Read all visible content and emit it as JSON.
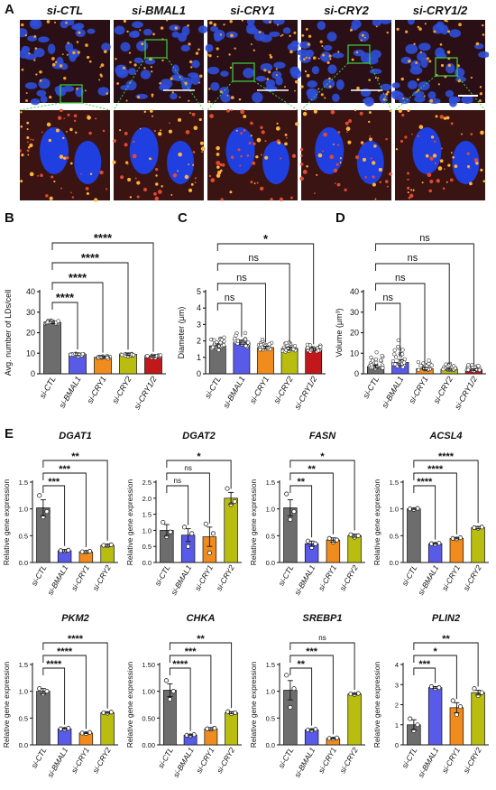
{
  "panel_labels": [
    "A",
    "B",
    "C",
    "D",
    "E"
  ],
  "micrograph": {
    "column_titles": [
      "si-CTL",
      "si-BMAL1",
      "si-CRY1",
      "si-CRY2",
      "si-CRY1/2"
    ]
  },
  "colors": {
    "si-CTL": "#6d6d6d",
    "si-BMAL1": "#5a5ae8",
    "si-CRY1": "#f08c1e",
    "si-CRY2": "#b9bd10",
    "si-CRY1/2": "#c0181b"
  },
  "chart_data": [
    {
      "id": "B",
      "type": "bar",
      "categories": [
        "si-CTL",
        "si-BMAL1",
        "si-CRY1",
        "si-CRY2",
        "si-CRY1/2"
      ],
      "values": [
        25,
        9.5,
        8,
        9.5,
        8.5
      ],
      "errors": [
        0.6,
        0.6,
        0.5,
        0.5,
        0.4
      ],
      "ylim": [
        0,
        40
      ],
      "yticks": [
        0,
        10,
        20,
        30,
        40
      ],
      "ylabel": "Avg. number of LDs/cell",
      "significance": [
        {
          "from": 0,
          "to": 1,
          "label": "****"
        },
        {
          "from": 0,
          "to": 2,
          "label": "****"
        },
        {
          "from": 0,
          "to": 3,
          "label": "****"
        },
        {
          "from": 0,
          "to": 4,
          "label": "****"
        }
      ]
    },
    {
      "id": "C",
      "type": "bar",
      "categories": [
        "si-CTL",
        "si-BMAL1",
        "si-CRY1",
        "si-CRY2",
        "si-CRY1/2"
      ],
      "values": [
        1.7,
        1.9,
        1.6,
        1.55,
        1.5
      ],
      "errors": [
        0.12,
        0.13,
        0.08,
        0.08,
        0.07
      ],
      "ylim": [
        0,
        5
      ],
      "yticks": [
        0,
        1,
        2,
        3,
        4,
        5
      ],
      "ylabel": "Diameter (μm)",
      "significance": [
        {
          "from": 0,
          "to": 1,
          "label": "ns"
        },
        {
          "from": 0,
          "to": 2,
          "label": "ns"
        },
        {
          "from": 0,
          "to": 3,
          "label": "ns"
        },
        {
          "from": 0,
          "to": 4,
          "label": "*"
        }
      ]
    },
    {
      "id": "D",
      "type": "bar",
      "categories": [
        "si-CTL",
        "si-BMAL1",
        "si-CRY1",
        "si-CRY2",
        "si-CRY1/2"
      ],
      "values": [
        3.5,
        5.5,
        2.5,
        2.2,
        2.0
      ],
      "errors": [
        0.8,
        1.5,
        0.5,
        0.4,
        0.4
      ],
      "ylim": [
        0,
        40
      ],
      "yticks": [
        0,
        10,
        20,
        30,
        40
      ],
      "ylabel": "Volume (μm³)",
      "significance": [
        {
          "from": 0,
          "to": 1,
          "label": "ns"
        },
        {
          "from": 0,
          "to": 2,
          "label": "ns"
        },
        {
          "from": 0,
          "to": 3,
          "label": "ns"
        },
        {
          "from": 0,
          "to": 4,
          "label": "ns"
        }
      ]
    },
    {
      "id": "DGAT1",
      "type": "bar",
      "title": "DGAT1",
      "categories": [
        "si-CTL",
        "si-BMAL1",
        "si-CRY1",
        "si-CRY2"
      ],
      "values": [
        1.02,
        0.22,
        0.2,
        0.32
      ],
      "errors": [
        0.15,
        0.02,
        0.02,
        0.02
      ],
      "points": [
        [
          1.25,
          0.85,
          0.95
        ],
        [
          0.22,
          0.21,
          0.23
        ],
        [
          0.2,
          0.19,
          0.21
        ],
        [
          0.32,
          0.31,
          0.33
        ]
      ],
      "ylim": [
        0,
        1.5
      ],
      "yticks": [
        0.0,
        0.5,
        1.0,
        1.5
      ],
      "ylabel": "Relative gene expression",
      "significance": [
        {
          "from": 0,
          "to": 1,
          "label": "***"
        },
        {
          "from": 0,
          "to": 2,
          "label": "***"
        },
        {
          "from": 0,
          "to": 3,
          "label": "**"
        }
      ]
    },
    {
      "id": "DGAT2",
      "type": "bar",
      "title": "DGAT2",
      "categories": [
        "si-CTL",
        "si-BMAL1",
        "si-CRY1",
        "si-CRY2"
      ],
      "values": [
        1.0,
        0.85,
        0.8,
        2.0
      ],
      "errors": [
        0.18,
        0.2,
        0.3,
        0.18
      ],
      "points": [
        [
          1.25,
          0.8,
          0.95
        ],
        [
          1.1,
          0.5,
          0.9
        ],
        [
          1.2,
          0.3,
          0.9
        ],
        [
          2.3,
          1.8,
          1.9
        ]
      ],
      "ylim": [
        0,
        2.5
      ],
      "yticks": [
        0.0,
        0.5,
        1.0,
        1.5,
        2.0,
        2.5
      ],
      "ylabel": "Relative gene expression",
      "significance": [
        {
          "from": 0,
          "to": 1,
          "label": "ns"
        },
        {
          "from": 0,
          "to": 2,
          "label": "ns"
        },
        {
          "from": 0,
          "to": 3,
          "label": "*"
        }
      ]
    },
    {
      "id": "FASN",
      "type": "bar",
      "title": "FASN",
      "categories": [
        "si-CTL",
        "si-BMAL1",
        "si-CRY1",
        "si-CRY2"
      ],
      "values": [
        1.02,
        0.35,
        0.42,
        0.5
      ],
      "errors": [
        0.15,
        0.05,
        0.04,
        0.03
      ],
      "points": [
        [
          1.28,
          0.8,
          0.95
        ],
        [
          0.4,
          0.28,
          0.35
        ],
        [
          0.45,
          0.38,
          0.42
        ],
        [
          0.52,
          0.47,
          0.5
        ]
      ],
      "ylim": [
        0,
        1.5
      ],
      "yticks": [
        0.0,
        0.5,
        1.0,
        1.5
      ],
      "ylabel": "Relative gene expression",
      "significance": [
        {
          "from": 0,
          "to": 1,
          "label": "**"
        },
        {
          "from": 0,
          "to": 2,
          "label": "**"
        },
        {
          "from": 0,
          "to": 3,
          "label": "*"
        }
      ]
    },
    {
      "id": "ACSL4",
      "type": "bar",
      "title": "ACSL4",
      "categories": [
        "si-CTL",
        "si-BMAL1",
        "si-CRY1",
        "si-CRY2"
      ],
      "values": [
        1.0,
        0.35,
        0.45,
        0.65
      ],
      "errors": [
        0.01,
        0.01,
        0.01,
        0.02
      ],
      "points": [
        [
          1.0,
          0.99,
          1.01
        ],
        [
          0.35,
          0.34,
          0.36
        ],
        [
          0.45,
          0.44,
          0.46
        ],
        [
          0.65,
          0.64,
          0.66
        ]
      ],
      "ylim": [
        0,
        1.5
      ],
      "yticks": [
        0.0,
        0.5,
        1.0,
        1.5
      ],
      "ylabel": "Relative gene expression",
      "significance": [
        {
          "from": 0,
          "to": 1,
          "label": "****"
        },
        {
          "from": 0,
          "to": 2,
          "label": "****"
        },
        {
          "from": 0,
          "to": 3,
          "label": "****"
        }
      ]
    },
    {
      "id": "PKM2",
      "type": "bar",
      "title": "PKM2",
      "categories": [
        "si-CTL",
        "si-BMAL1",
        "si-CRY1",
        "si-CRY2"
      ],
      "values": [
        1.0,
        0.3,
        0.22,
        0.6
      ],
      "errors": [
        0.05,
        0.01,
        0.01,
        0.01
      ],
      "points": [
        [
          1.05,
          0.95,
          1.0
        ],
        [
          0.3,
          0.29,
          0.31
        ],
        [
          0.22,
          0.21,
          0.23
        ],
        [
          0.6,
          0.59,
          0.61
        ]
      ],
      "ylim": [
        0,
        1.5
      ],
      "yticks": [
        0.0,
        0.5,
        1.0,
        1.5
      ],
      "ylabel": "Relative gene expression",
      "significance": [
        {
          "from": 0,
          "to": 1,
          "label": "****"
        },
        {
          "from": 0,
          "to": 2,
          "label": "****"
        },
        {
          "from": 0,
          "to": 3,
          "label": "****"
        }
      ]
    },
    {
      "id": "CHKA",
      "type": "bar",
      "title": "CHKA",
      "categories": [
        "si-CTL",
        "si-BMAL1",
        "si-CRY1",
        "si-CRY2"
      ],
      "values": [
        1.02,
        0.18,
        0.3,
        0.6
      ],
      "errors": [
        0.12,
        0.01,
        0.02,
        0.02
      ],
      "points": [
        [
          1.2,
          0.85,
          1.0
        ],
        [
          0.18,
          0.17,
          0.19
        ],
        [
          0.3,
          0.29,
          0.31
        ],
        [
          0.62,
          0.58,
          0.6
        ]
      ],
      "ylim": [
        0,
        1.5
      ],
      "yticks": [
        0.0,
        0.5,
        1.0,
        1.5
      ],
      "ylabel": "Relative gene expression",
      "significance": [
        {
          "from": 0,
          "to": 1,
          "label": "****"
        },
        {
          "from": 0,
          "to": 2,
          "label": "***"
        },
        {
          "from": 0,
          "to": 3,
          "label": "**"
        }
      ]
    },
    {
      "id": "SREBP1",
      "type": "bar",
      "title": "SREBP1",
      "categories": [
        "si-CTL",
        "si-BMAL1",
        "si-CRY1",
        "si-CRY2"
      ],
      "values": [
        1.02,
        0.28,
        0.12,
        0.95
      ],
      "errors": [
        0.18,
        0.01,
        0.01,
        0.01
      ],
      "points": [
        [
          1.3,
          0.7,
          1.05
        ],
        [
          0.28,
          0.27,
          0.29
        ],
        [
          0.12,
          0.11,
          0.13
        ],
        [
          0.95,
          0.94,
          0.96
        ]
      ],
      "ylim": [
        0,
        1.5
      ],
      "yticks": [
        0.0,
        0.5,
        1.0,
        1.5
      ],
      "ylabel": "Relative gene expression",
      "significance": [
        {
          "from": 0,
          "to": 1,
          "label": "**"
        },
        {
          "from": 0,
          "to": 2,
          "label": "***"
        },
        {
          "from": 0,
          "to": 3,
          "label": "ns"
        }
      ]
    },
    {
      "id": "PLIN2",
      "type": "bar",
      "title": "PLIN2",
      "categories": [
        "si-CTL",
        "si-BMAL1",
        "si-CRY1",
        "si-CRY2"
      ],
      "values": [
        1.0,
        2.85,
        1.85,
        2.6
      ],
      "errors": [
        0.25,
        0.05,
        0.25,
        0.12
      ],
      "points": [
        [
          1.3,
          0.7,
          1.0
        ],
        [
          2.9,
          2.8,
          2.85
        ],
        [
          2.2,
          1.5,
          1.9
        ],
        [
          2.8,
          2.45,
          2.6
        ]
      ],
      "ylim": [
        0,
        4
      ],
      "yticks": [
        0,
        1,
        2,
        3,
        4
      ],
      "ylabel": "Relative gene expression",
      "significance": [
        {
          "from": 0,
          "to": 1,
          "label": "***"
        },
        {
          "from": 0,
          "to": 2,
          "label": "*"
        },
        {
          "from": 0,
          "to": 3,
          "label": "**"
        }
      ]
    }
  ]
}
